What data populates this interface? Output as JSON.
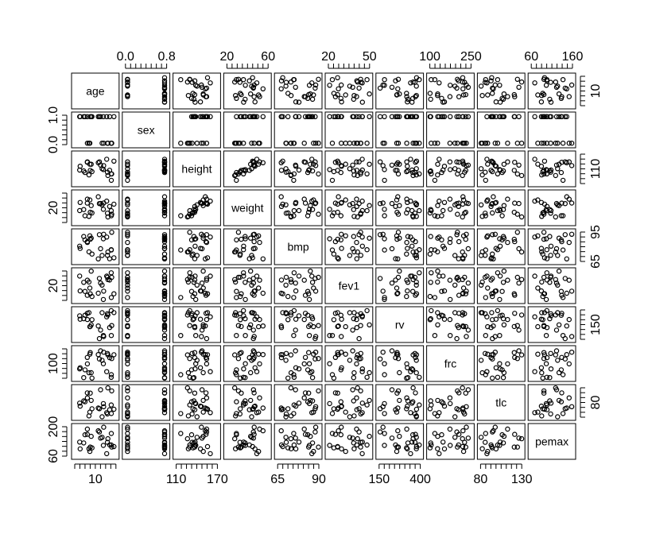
{
  "chart_data": {
    "type": "scatter-matrix",
    "variables": [
      "age",
      "sex",
      "height",
      "weight",
      "bmp",
      "fev1",
      "rv",
      "frc",
      "tlc",
      "pemax"
    ],
    "axes": {
      "top": [
        {
          "col": 1,
          "labels": [
            "0.0",
            "0.8"
          ]
        },
        {
          "col": 3,
          "labels": [
            "20",
            "60"
          ]
        },
        {
          "col": 5,
          "labels": [
            "20",
            "50"
          ]
        },
        {
          "col": 7,
          "labels": [
            "100",
            "250"
          ]
        },
        {
          "col": 9,
          "labels": [
            "60",
            "160"
          ]
        }
      ],
      "bottom": [
        {
          "col": 0,
          "labels": [
            "10"
          ]
        },
        {
          "col": 2,
          "labels": [
            "110",
            "170"
          ]
        },
        {
          "col": 4,
          "labels": [
            "65",
            "90"
          ]
        },
        {
          "col": 6,
          "labels": [
            "150",
            "400"
          ]
        },
        {
          "col": 8,
          "labels": [
            "80",
            "130"
          ]
        }
      ],
      "left": [
        {
          "row": 1,
          "labels": [
            "0.0",
            "1.0"
          ]
        },
        {
          "row": 3,
          "labels": [
            "20"
          ]
        },
        {
          "row": 5,
          "labels": [
            "20"
          ]
        },
        {
          "row": 7,
          "labels": [
            "100"
          ]
        },
        {
          "row": 9,
          "labels": [
            "60",
            "200"
          ]
        }
      ],
      "right": [
        {
          "row": 0,
          "labels": [
            "10"
          ]
        },
        {
          "row": 2,
          "labels": [
            "110"
          ]
        },
        {
          "row": 4,
          "labels": [
            "65",
            "95"
          ]
        },
        {
          "row": 6,
          "labels": [
            "150"
          ]
        },
        {
          "row": 8,
          "labels": [
            "80"
          ]
        }
      ]
    }
  }
}
